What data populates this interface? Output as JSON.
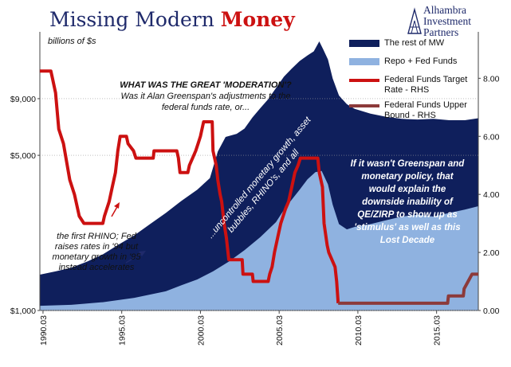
{
  "header": {
    "title_part1": "Missing Modern",
    "title_part2": "Money",
    "logo_text": [
      "Alhambra",
      "Investment",
      "Partners"
    ]
  },
  "chart_data": {
    "type": "area",
    "units_label": "billions of $s",
    "x_ticks": [
      "1990.03",
      "1995.03",
      "2000.03",
      "2005.03",
      "2010.03",
      "2015.03"
    ],
    "y_left": {
      "scale": "log",
      "ticks": [
        "$1,000",
        "$5,000",
        "$9,000"
      ],
      "tick_values": [
        1000,
        5000,
        9000
      ],
      "range": [
        1000,
        18000
      ]
    },
    "y_right": {
      "ticks": [
        "0.00",
        "2.00",
        "4.00",
        "6.00",
        "8.00"
      ],
      "tick_values": [
        0,
        2,
        4,
        6,
        8
      ],
      "range": [
        0,
        9.6
      ]
    },
    "x_range": [
      1990.0,
      2017.85
    ],
    "legend_position": "top-right",
    "colors": {
      "rest_of_mw": "#0f1f5c",
      "repo_fed": "#8fb2e0",
      "target_rate": "#cc1111",
      "upper_bound": "#8c3a3a"
    },
    "series": [
      {
        "name": "The rest of MW",
        "axis": "left",
        "note": "total MW (top of stacked area)",
        "points": [
          [
            1990.0,
            1450
          ],
          [
            1991.0,
            1500
          ],
          [
            1992.0,
            1560
          ],
          [
            1993.0,
            1660
          ],
          [
            1994.0,
            1790
          ],
          [
            1995.0,
            1980
          ],
          [
            1996.0,
            2180
          ],
          [
            1997.0,
            2450
          ],
          [
            1998.0,
            2750
          ],
          [
            1999.0,
            3120
          ],
          [
            2000.0,
            3500
          ],
          [
            2000.8,
            3950
          ],
          [
            2001.3,
            5200
          ],
          [
            2001.8,
            6050
          ],
          [
            2002.5,
            6250
          ],
          [
            2003.0,
            6600
          ],
          [
            2003.5,
            7400
          ],
          [
            2004.0,
            8150
          ],
          [
            2004.5,
            8950
          ],
          [
            2005.0,
            10050
          ],
          [
            2005.5,
            11300
          ],
          [
            2006.0,
            12300
          ],
          [
            2006.5,
            13300
          ],
          [
            2007.0,
            14100
          ],
          [
            2007.4,
            14700
          ],
          [
            2007.75,
            16300
          ],
          [
            2008.0,
            15000
          ],
          [
            2008.3,
            13500
          ],
          [
            2008.6,
            11100
          ],
          [
            2009.0,
            9300
          ],
          [
            2009.5,
            8500
          ],
          [
            2010.0,
            8100
          ],
          [
            2011.0,
            7700
          ],
          [
            2012.0,
            7450
          ],
          [
            2013.0,
            7300
          ],
          [
            2014.0,
            7250
          ],
          [
            2015.0,
            7300
          ],
          [
            2016.0,
            7200
          ],
          [
            2017.0,
            7200
          ],
          [
            2017.85,
            7350
          ]
        ]
      },
      {
        "name": "Repo + Fed Funds",
        "axis": "left",
        "points": [
          [
            1990.0,
            1050
          ],
          [
            1992.0,
            1060
          ],
          [
            1994.0,
            1090
          ],
          [
            1996.0,
            1140
          ],
          [
            1998.0,
            1220
          ],
          [
            1999.0,
            1300
          ],
          [
            2000.0,
            1380
          ],
          [
            2001.0,
            1500
          ],
          [
            2002.0,
            1660
          ],
          [
            2003.0,
            1870
          ],
          [
            2004.0,
            2140
          ],
          [
            2005.0,
            2500
          ],
          [
            2005.5,
            2840
          ],
          [
            2006.0,
            3160
          ],
          [
            2006.5,
            3500
          ],
          [
            2007.0,
            3900
          ],
          [
            2007.5,
            4200
          ],
          [
            2007.9,
            4250
          ],
          [
            2008.3,
            3700
          ],
          [
            2008.6,
            3000
          ],
          [
            2009.0,
            2450
          ],
          [
            2009.5,
            2320
          ],
          [
            2010.0,
            2380
          ],
          [
            2011.0,
            2450
          ],
          [
            2012.0,
            2550
          ],
          [
            2013.0,
            2650
          ],
          [
            2014.0,
            2700
          ],
          [
            2015.0,
            2650
          ],
          [
            2016.0,
            2750
          ],
          [
            2017.0,
            2850
          ],
          [
            2017.85,
            2950
          ]
        ]
      },
      {
        "name": "Federal Funds Target Rate - RHS",
        "axis": "right",
        "points": [
          [
            1990.0,
            8.25
          ],
          [
            1990.7,
            8.25
          ],
          [
            1990.8,
            8.0
          ],
          [
            1991.0,
            7.5
          ],
          [
            1991.2,
            6.25
          ],
          [
            1991.5,
            5.75
          ],
          [
            1991.9,
            4.5
          ],
          [
            1992.2,
            4.0
          ],
          [
            1992.5,
            3.25
          ],
          [
            1992.8,
            3.0
          ],
          [
            1994.0,
            3.0
          ],
          [
            1994.1,
            3.25
          ],
          [
            1994.4,
            3.75
          ],
          [
            1994.6,
            4.25
          ],
          [
            1994.8,
            4.75
          ],
          [
            1994.95,
            5.5
          ],
          [
            1995.1,
            6.0
          ],
          [
            1995.5,
            6.0
          ],
          [
            1995.6,
            5.75
          ],
          [
            1995.95,
            5.5
          ],
          [
            1996.1,
            5.25
          ],
          [
            1997.2,
            5.25
          ],
          [
            1997.25,
            5.5
          ],
          [
            1998.7,
            5.5
          ],
          [
            1998.8,
            5.25
          ],
          [
            1998.9,
            4.75
          ],
          [
            1999.4,
            4.75
          ],
          [
            1999.5,
            5.0
          ],
          [
            1999.7,
            5.25
          ],
          [
            1999.9,
            5.5
          ],
          [
            2000.05,
            5.75
          ],
          [
            2000.2,
            6.0
          ],
          [
            2000.4,
            6.5
          ],
          [
            2000.95,
            6.5
          ],
          [
            2001.0,
            5.5
          ],
          [
            2001.2,
            5.0
          ],
          [
            2001.3,
            4.5
          ],
          [
            2001.45,
            4.0
          ],
          [
            2001.55,
            3.75
          ],
          [
            2001.7,
            3.0
          ],
          [
            2001.85,
            2.5
          ],
          [
            2001.95,
            2.0
          ],
          [
            2002.0,
            1.75
          ],
          [
            2002.85,
            1.75
          ],
          [
            2002.9,
            1.25
          ],
          [
            2003.5,
            1.25
          ],
          [
            2003.55,
            1.0
          ],
          [
            2004.5,
            1.0
          ],
          [
            2004.6,
            1.25
          ],
          [
            2004.75,
            1.5
          ],
          [
            2004.9,
            2.0
          ],
          [
            2005.1,
            2.5
          ],
          [
            2005.3,
            3.0
          ],
          [
            2005.6,
            3.5
          ],
          [
            2005.8,
            3.75
          ],
          [
            2006.0,
            4.25
          ],
          [
            2006.2,
            4.75
          ],
          [
            2006.4,
            5.0
          ],
          [
            2006.55,
            5.25
          ],
          [
            2007.65,
            5.25
          ],
          [
            2007.75,
            4.75
          ],
          [
            2007.85,
            4.5
          ],
          [
            2007.95,
            4.25
          ],
          [
            2008.05,
            3.0
          ],
          [
            2008.25,
            2.25
          ],
          [
            2008.35,
            2.0
          ],
          [
            2008.75,
            1.5
          ],
          [
            2008.85,
            1.0
          ],
          [
            2008.95,
            0.25
          ]
        ]
      },
      {
        "name": "Federal Funds Upper Bound - RHS",
        "axis": "right",
        "points": [
          [
            2008.95,
            0.25
          ],
          [
            2015.9,
            0.25
          ],
          [
            2015.95,
            0.5
          ],
          [
            2016.9,
            0.5
          ],
          [
            2016.95,
            0.75
          ],
          [
            2017.2,
            1.0
          ],
          [
            2017.45,
            1.25
          ],
          [
            2017.85,
            1.25
          ]
        ]
      }
    ],
    "annotations": {
      "moderation_title": "WHAT WAS THE GREAT 'MODERATION'?",
      "moderation_body": [
        "Was it Alan Greenspan's adjustments to the",
        "federal funds rate, or..."
      ],
      "rhino": [
        "the first RHINO; Fed",
        "raises rates in '94 but",
        "monetary growth in '95",
        "instead accelerates"
      ],
      "diagonal": [
        "...uncontrolled monetary growth, asset",
        "bubbles, RHINO's, and all"
      ],
      "greenspan": [
        "If it wasn't Greenspan and",
        "monetary policy, that",
        "would explain the",
        "downside inability of",
        "QE/ZIRP to show up as",
        "'stimulus' as well as this",
        "Lost Decade"
      ]
    }
  }
}
